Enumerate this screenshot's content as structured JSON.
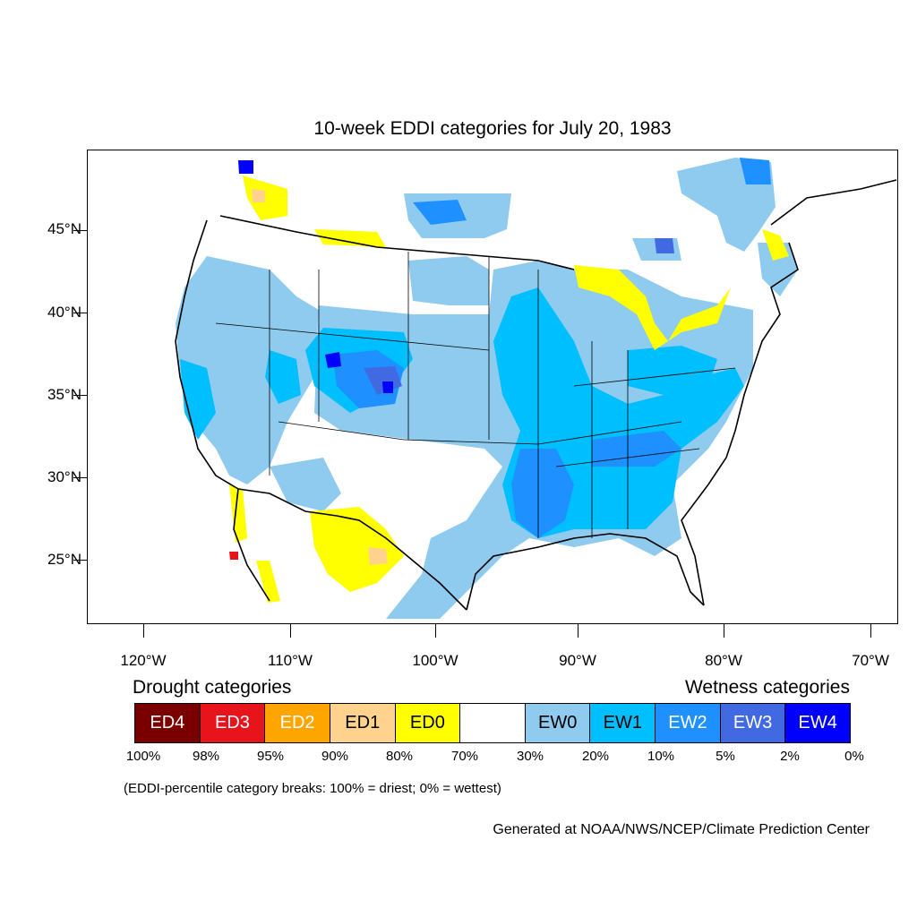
{
  "title": "10-week EDDI categories for July 20, 1983",
  "axes": {
    "latitude_labels": [
      "45°N",
      "40°N",
      "35°N",
      "30°N",
      "25°N"
    ],
    "longitude_labels": [
      "120°W",
      "110°W",
      "100°W",
      "90°W",
      "80°W",
      "70°W"
    ]
  },
  "legend": {
    "drought_heading": "Drought categories",
    "wetness_heading": "Wetness categories",
    "categories": [
      {
        "label": "ED4",
        "color": "#7a0000",
        "text_color": "#ffffff"
      },
      {
        "label": "ED3",
        "color": "#e8141b",
        "text_color": "#ffffff"
      },
      {
        "label": "ED2",
        "color": "#ffa500",
        "text_color": "#ffffff"
      },
      {
        "label": "ED1",
        "color": "#ffd38e",
        "text_color": "#000000"
      },
      {
        "label": "ED0",
        "color": "#ffff00",
        "text_color": "#000000"
      },
      {
        "label": "",
        "color": "#ffffff",
        "text_color": "#000000"
      },
      {
        "label": "EW0",
        "color": "#8ecbef",
        "text_color": "#000000"
      },
      {
        "label": "EW1",
        "color": "#00bfff",
        "text_color": "#000000"
      },
      {
        "label": "EW2",
        "color": "#1e90ff",
        "text_color": "#ffffff"
      },
      {
        "label": "EW3",
        "color": "#4169e1",
        "text_color": "#ffffff"
      },
      {
        "label": "EW4",
        "color": "#0000ff",
        "text_color": "#ffffff"
      }
    ],
    "breaks": [
      "100%",
      "98%",
      "95%",
      "90%",
      "80%",
      "70%",
      "30%",
      "20%",
      "10%",
      "5%",
      "2%",
      "0%"
    ]
  },
  "note": "(EDDI-percentile category breaks: 100% = driest; 0% = wettest)",
  "credit": "Generated at NOAA/NWS/NCEP/Climate Prediction Center"
}
